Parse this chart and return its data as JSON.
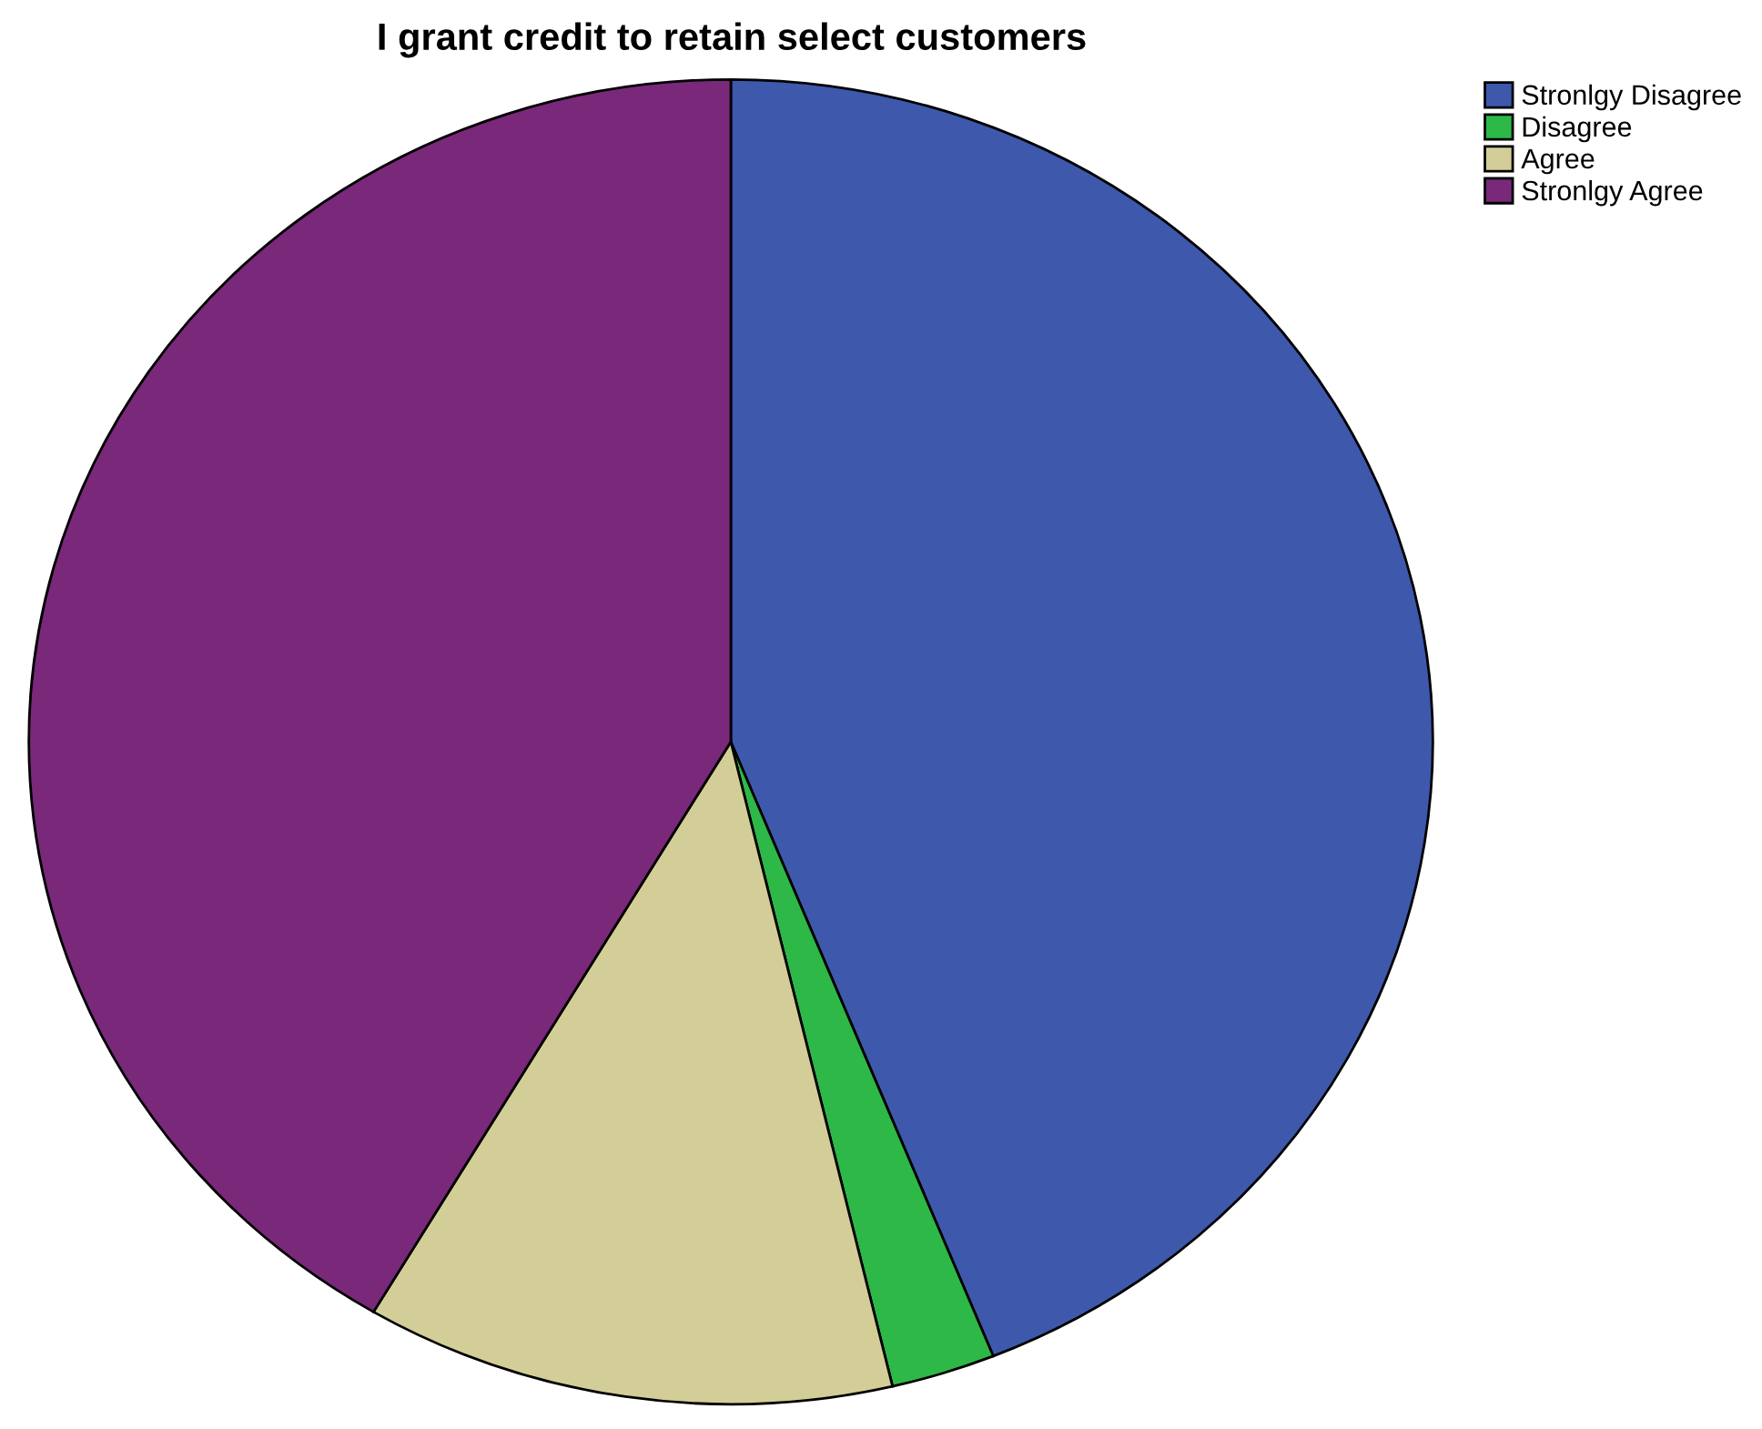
{
  "chart_data": {
    "type": "pie",
    "title": "I grant credit to retain select customers",
    "categories": [
      "Stronlgy Disagree",
      "Disagree",
      "Agree",
      "Stronlgy Agree"
    ],
    "values": [
      43.9,
      2.4,
      12.2,
      41.5
    ],
    "colors": [
      "#3e58ac",
      "#2eb848",
      "#d3ce97",
      "#79287a"
    ],
    "legend": "top right"
  }
}
